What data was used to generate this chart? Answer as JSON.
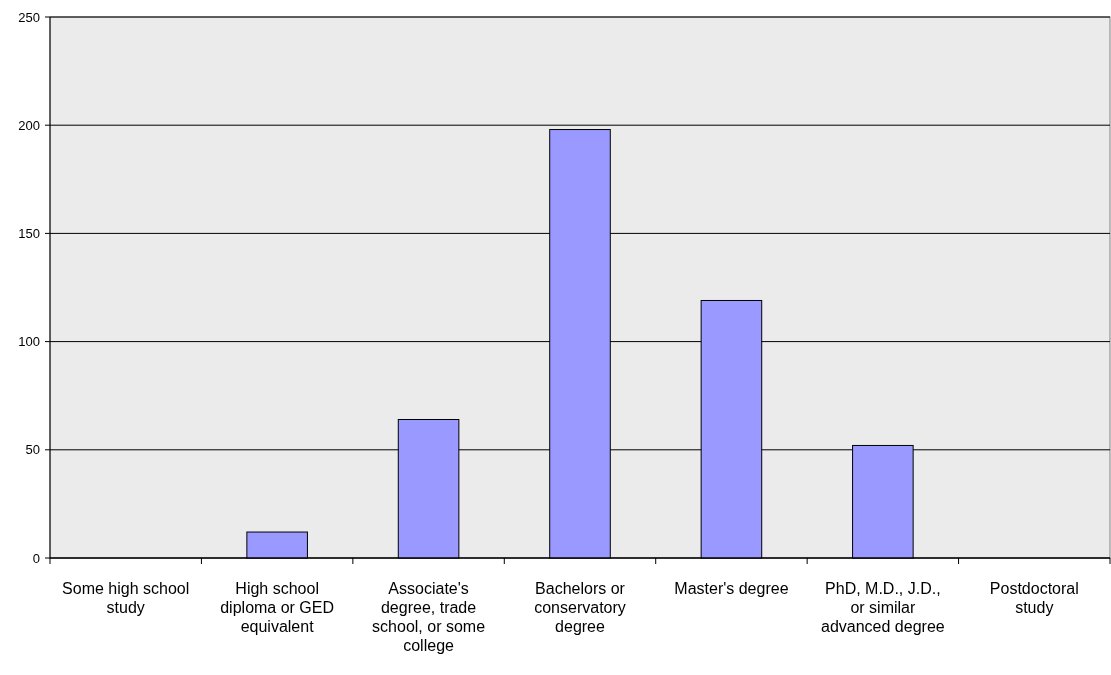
{
  "chart_data": {
    "type": "bar",
    "categories": [
      "Some high school study",
      "High school diploma or GED equivalent",
      "Associate's degree, trade school, or some college",
      "Bachelors or conservatory degree",
      "Master's degree",
      "PhD, M.D., J.D., or similar advanced degree",
      "Postdoctoral study"
    ],
    "values": [
      0,
      12,
      64,
      198,
      119,
      52,
      0
    ],
    "color": "#9999ff",
    "ylim": [
      0,
      250
    ],
    "yticks": [
      0,
      50,
      100,
      150,
      200,
      250
    ],
    "grid": "y"
  }
}
